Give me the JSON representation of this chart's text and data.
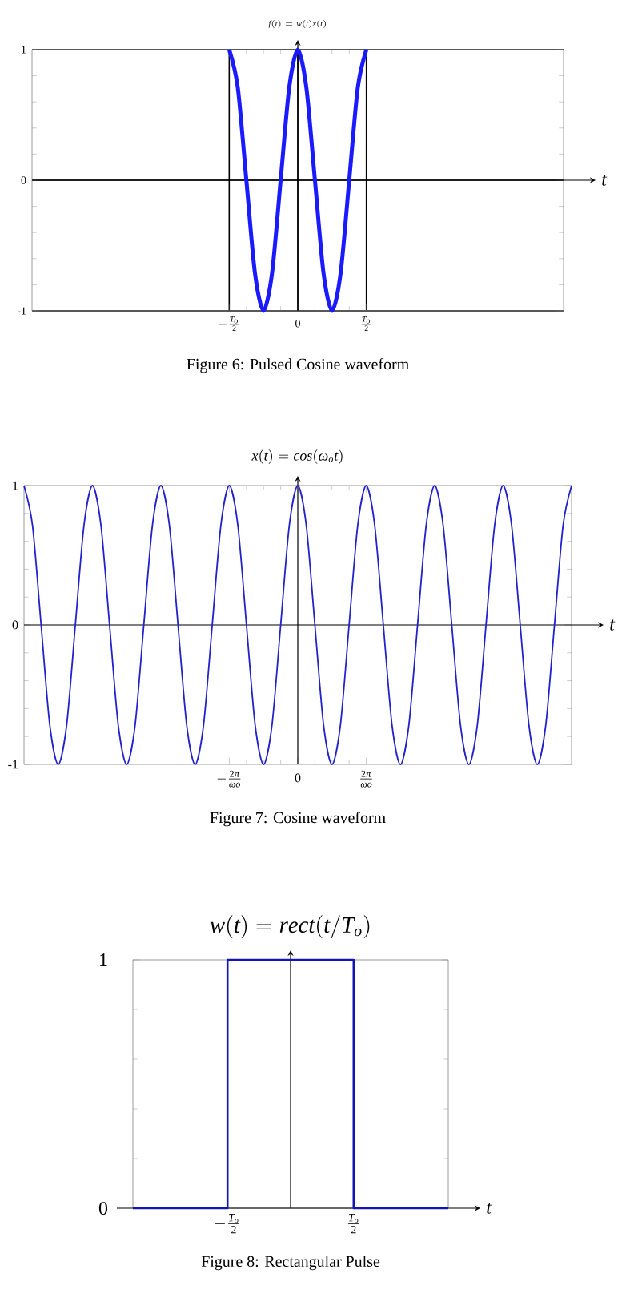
{
  "chart_data": [
    {
      "type": "line",
      "title": "f(t) = w(t)x(t)",
      "xlabel": "t",
      "annotations": [
        "Figure 6: Pulsed Cosine waveform"
      ],
      "ylim": [
        -1,
        1
      ],
      "yticks": [
        -1,
        0,
        1
      ],
      "categories": [
        null,
        null,
        null,
        null,
        null,
        null,
        null,
        null,
        null,
        null,
        null,
        null,
        null,
        null,
        null,
        null,
        null,
        null,
        null,
        null,
        null,
        null,
        null,
        "-\\frac{T_o}{2}",
        null,
        null,
        null,
        null,
        null,
        null,
        null,
        "0",
        null,
        null,
        null,
        null,
        null,
        null,
        null,
        "\\frac{T_o}{2}",
        null,
        null,
        null,
        null,
        null,
        null,
        null,
        null,
        null,
        null,
        null,
        null,
        null,
        null,
        null,
        null,
        null,
        null,
        null,
        null,
        null,
        null,
        null
      ],
      "grid": true,
      "values": [
        null,
        null,
        null,
        null,
        null,
        null,
        null,
        null,
        null,
        null,
        null,
        null,
        null,
        null,
        null,
        null,
        null,
        null,
        null,
        null,
        null,
        null,
        null,
        1,
        0.71,
        0,
        -0.71,
        -1,
        -0.71,
        0,
        0.71,
        1,
        0.71,
        0,
        -0.71,
        -1,
        -0.71,
        0,
        0.71,
        1,
        null,
        null,
        null,
        null,
        null,
        null,
        null,
        null,
        null,
        null,
        null,
        null,
        null,
        null,
        null,
        null,
        null,
        null,
        null,
        null,
        null,
        null,
        null
      ],
      "color": "#1a1aff"
    },
    {
      "type": "line",
      "title": "x(t) = cos(\\omega_o t)",
      "xlabel": "t",
      "annotations": [
        "Figure 7: Cosine waveform"
      ],
      "ylim": [
        -1,
        1
      ],
      "yticks": [
        -1,
        0,
        1
      ],
      "categories": [
        null,
        null,
        null,
        null,
        null,
        null,
        null,
        null,
        null,
        null,
        null,
        null,
        null,
        null,
        null,
        null,
        null,
        null,
        null,
        null,
        null,
        null,
        null,
        null,
        "-\\frac{2\\pi}{\\omega o}",
        null,
        null,
        null,
        null,
        null,
        null,
        null,
        "0",
        null,
        null,
        null,
        null,
        null,
        null,
        null,
        "\\frac{2\\pi}{\\omega o}",
        null,
        null,
        null,
        null,
        null,
        null,
        null,
        null,
        null,
        null,
        null,
        null,
        null,
        null,
        null,
        null,
        null,
        null,
        null,
        null,
        null,
        null,
        null,
        null
      ],
      "values": [
        1,
        0.71,
        0,
        -0.71,
        -1,
        -0.71,
        0,
        0.71,
        1,
        0.71,
        0,
        -0.71,
        -1,
        -0.71,
        0,
        0.71,
        1,
        0.71,
        0,
        -0.71,
        -1,
        -0.71,
        0,
        0.71,
        1,
        0.71,
        0,
        -0.71,
        -1,
        -0.71,
        0,
        0.71,
        1,
        0.71,
        0,
        -0.71,
        -1,
        -0.71,
        0,
        0.71,
        1,
        0.71,
        0,
        -0.71,
        -1,
        -0.71,
        0,
        0.71,
        1,
        0.71,
        0,
        -0.71,
        -1,
        -0.71,
        0,
        0.71,
        1,
        0.71,
        0,
        -0.71,
        -1,
        -0.71,
        0,
        0.71,
        1
      ],
      "color": "#2222cc"
    },
    {
      "type": "step",
      "title": "w(t) = rect(t/T_o)",
      "xlabel": "t",
      "annotations": [
        "Figure 8: Rectangular Pulse"
      ],
      "ylim": [
        0,
        1
      ],
      "yticks": [
        0,
        1
      ],
      "categories": [
        null,
        null,
        null,
        "-\\frac{T_o}{2}",
        null,
        null,
        null,
        "\\frac{T_o}{2}",
        null,
        null,
        null
      ],
      "values": [
        0,
        0,
        0,
        1,
        1,
        1,
        1,
        0,
        0,
        0,
        0
      ],
      "color": "#1414b4"
    }
  ]
}
